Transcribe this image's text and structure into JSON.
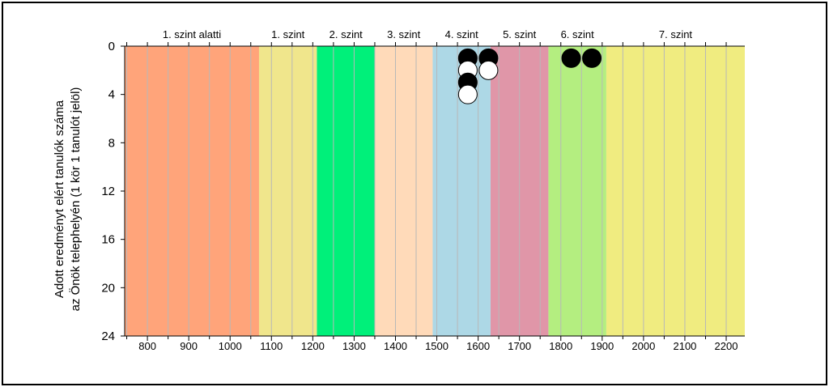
{
  "chart_data": {
    "type": "scatter",
    "ylabel_lines": [
      "Adott eredményt elért tanulók száma",
      "az Önök telephelyén (1 kör 1 tanulót jelöl)"
    ],
    "xlim": [
      745,
      2245
    ],
    "ylim": [
      0,
      24
    ],
    "y_inverted": true,
    "x_ticks": [
      800,
      900,
      1000,
      1100,
      1200,
      1300,
      1400,
      1500,
      1600,
      1700,
      1800,
      1900,
      2000,
      2100,
      2200
    ],
    "y_ticks": [
      0,
      4,
      8,
      12,
      16,
      20,
      24
    ],
    "levels": [
      {
        "label": "1. szint alatti",
        "from": 745,
        "to": 1070,
        "color": "#FFA47A"
      },
      {
        "label": "1. szint",
        "from": 1070,
        "to": 1210,
        "color": "#F0E68C"
      },
      {
        "label": "2. szint",
        "from": 1210,
        "to": 1350,
        "color": "#00F07A"
      },
      {
        "label": "3. szint",
        "from": 1350,
        "to": 1490,
        "color": "#FFDAB9"
      },
      {
        "label": "4. szint",
        "from": 1490,
        "to": 1630,
        "color": "#ADD8E6"
      },
      {
        "label": "5. szint",
        "from": 1630,
        "to": 1770,
        "color": "#E096A8"
      },
      {
        "label": "6. szint",
        "from": 1770,
        "to": 1910,
        "color": "#B4EE80"
      },
      {
        "label": "7. szint",
        "from": 1910,
        "to": 2245,
        "color": "#F0EC80"
      }
    ],
    "points": [
      {
        "x": 1575,
        "y": 1,
        "fill": "black"
      },
      {
        "x": 1575,
        "y": 2,
        "fill": "white"
      },
      {
        "x": 1575,
        "y": 3,
        "fill": "black"
      },
      {
        "x": 1575,
        "y": 4,
        "fill": "white"
      },
      {
        "x": 1625,
        "y": 1,
        "fill": "black"
      },
      {
        "x": 1625,
        "y": 2,
        "fill": "white"
      },
      {
        "x": 1825,
        "y": 1,
        "fill": "black"
      },
      {
        "x": 1875,
        "y": 1,
        "fill": "black"
      }
    ]
  }
}
